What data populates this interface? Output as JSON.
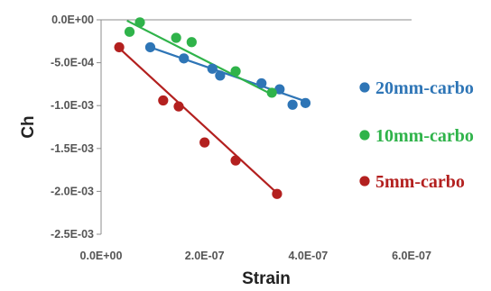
{
  "chart_data": {
    "type": "scatter",
    "title": "",
    "xlabel": "Strain",
    "ylabel": "Ch",
    "xlim": [
      0,
      6e-07
    ],
    "ylim": [
      -0.0025,
      0
    ],
    "x_ticks": [
      0,
      2e-07,
      4e-07,
      6e-07
    ],
    "x_tick_labels": [
      "0.0E+00",
      "2.0E-07",
      "4.0E-07",
      "6.0E-07"
    ],
    "y_ticks": [
      0,
      -0.0005,
      -0.001,
      -0.0015,
      -0.002,
      -0.0025
    ],
    "y_tick_labels": [
      "0.0E+00",
      "-5.0E-04",
      "-1.0E-03",
      "-1.5E-03",
      "-2.0E-03",
      "-2.5E-03"
    ],
    "grid": false,
    "legend_position": "right",
    "series": [
      {
        "name": "20mm-carbo",
        "color": "#2e75b6",
        "points": [
          [
            9.5e-08,
            -0.00032
          ],
          [
            1.6e-07,
            -0.00045
          ],
          [
            2.15e-07,
            -0.00057
          ],
          [
            2.3e-07,
            -0.00065
          ],
          [
            3.1e-07,
            -0.00074
          ],
          [
            3.45e-07,
            -0.00081
          ],
          [
            3.7e-07,
            -0.00099
          ],
          [
            3.95e-07,
            -0.00097
          ]
        ],
        "trendline": [
          [
            9.5e-08,
            -0.00032
          ],
          [
            3.95e-07,
            -0.00095
          ]
        ]
      },
      {
        "name": "10mm-carbo",
        "color": "#2fb34a",
        "points": [
          [
            5.5e-08,
            -0.00014
          ],
          [
            7.5e-08,
            -3e-05
          ],
          [
            1.45e-07,
            -0.00021
          ],
          [
            1.75e-07,
            -0.00026
          ],
          [
            2.6e-07,
            -0.0006
          ],
          [
            3.3e-07,
            -0.00085
          ]
        ],
        "trendline": [
          [
            5e-08,
            -1e-05
          ],
          [
            3.3e-07,
            -0.00087
          ]
        ]
      },
      {
        "name": "5mm-carbo",
        "color": "#b3201f",
        "points": [
          [
            3.5e-08,
            -0.00032
          ],
          [
            1.2e-07,
            -0.00094
          ],
          [
            1.5e-07,
            -0.00101
          ],
          [
            2e-07,
            -0.00143
          ],
          [
            2.6e-07,
            -0.00164
          ],
          [
            3.4e-07,
            -0.00203
          ]
        ],
        "trendline": [
          [
            3.5e-08,
            -0.00033
          ],
          [
            3.4e-07,
            -0.00202
          ]
        ]
      }
    ]
  }
}
